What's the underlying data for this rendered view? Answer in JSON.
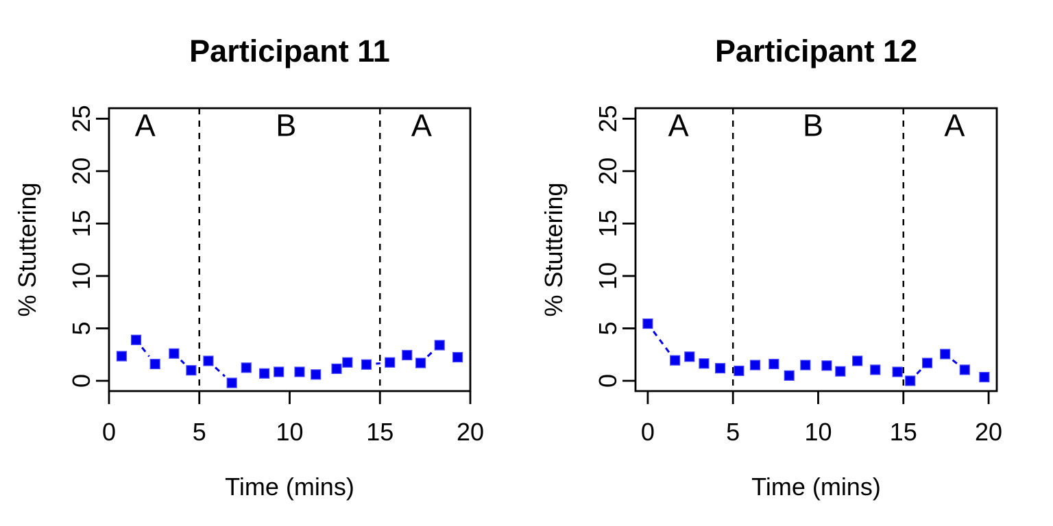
{
  "figure": {
    "background": "#ffffff",
    "description": "Two single-case ABA phase scatter plots of stuttering percentage over time"
  },
  "colors": {
    "series": "#0000ee",
    "series_halo": "#4d4dff",
    "axis": "#000000",
    "phase_line": "#000000"
  },
  "chart_data": [
    {
      "type": "scatter",
      "title": "Participant 11",
      "xlabel": "Time (mins)",
      "ylabel": "% Stuttering",
      "x_ticks": [
        0,
        5,
        10,
        15,
        20
      ],
      "y_ticks": [
        0,
        5,
        10,
        15,
        20,
        25
      ],
      "xlim": [
        0.0,
        20.0
      ],
      "ylim": [
        -0.98,
        26.0
      ],
      "grid": false,
      "legend": null,
      "phase_boundaries": [
        5,
        15
      ],
      "phase_labels": [
        {
          "label": "A",
          "x": 2.0
        },
        {
          "label": "B",
          "x": 9.8
        },
        {
          "label": "A",
          "x": 17.3
        }
      ],
      "phase_label_y": 24.4,
      "series": [
        {
          "name": "% stuttering",
          "marker": "square",
          "line_style": "dashed",
          "x": [
            0.7,
            1.5,
            2.55,
            3.6,
            4.55,
            5.5,
            6.8,
            7.6,
            8.6,
            9.4,
            10.55,
            11.45,
            12.6,
            13.2,
            14.25,
            15.55,
            16.5,
            17.25,
            18.3,
            19.3
          ],
          "y": [
            2.35,
            3.9,
            1.6,
            2.6,
            1.0,
            1.9,
            -0.2,
            1.25,
            0.7,
            0.85,
            0.85,
            0.6,
            1.15,
            1.75,
            1.55,
            1.75,
            2.45,
            1.7,
            3.4,
            2.25
          ]
        }
      ]
    },
    {
      "type": "scatter",
      "title": "Participant 12",
      "xlabel": "Time (mins)",
      "ylabel": "% Stuttering",
      "x_ticks": [
        0,
        5,
        10,
        15,
        20
      ],
      "y_ticks": [
        0,
        5,
        10,
        15,
        20,
        25
      ],
      "xlim": [
        -0.72,
        20.48
      ],
      "ylim": [
        -0.98,
        26.0
      ],
      "grid": false,
      "legend": null,
      "phase_boundaries": [
        5,
        15
      ],
      "phase_labels": [
        {
          "label": "A",
          "x": 1.8
        },
        {
          "label": "B",
          "x": 9.7
        },
        {
          "label": "A",
          "x": 18.0
        }
      ],
      "phase_label_y": 24.4,
      "series": [
        {
          "name": "% stuttering",
          "marker": "square",
          "line_style": "dashed",
          "x": [
            0.0,
            1.6,
            2.45,
            3.3,
            4.25,
            5.35,
            6.3,
            7.4,
            8.3,
            9.25,
            10.5,
            11.3,
            12.3,
            13.35,
            14.65,
            15.4,
            16.4,
            17.45,
            18.6,
            19.75
          ],
          "y": [
            5.45,
            1.95,
            2.3,
            1.65,
            1.2,
            0.95,
            1.5,
            1.6,
            0.5,
            1.5,
            1.45,
            0.9,
            1.9,
            1.05,
            0.85,
            0.0,
            1.7,
            2.55,
            1.05,
            0.35
          ]
        }
      ]
    }
  ]
}
